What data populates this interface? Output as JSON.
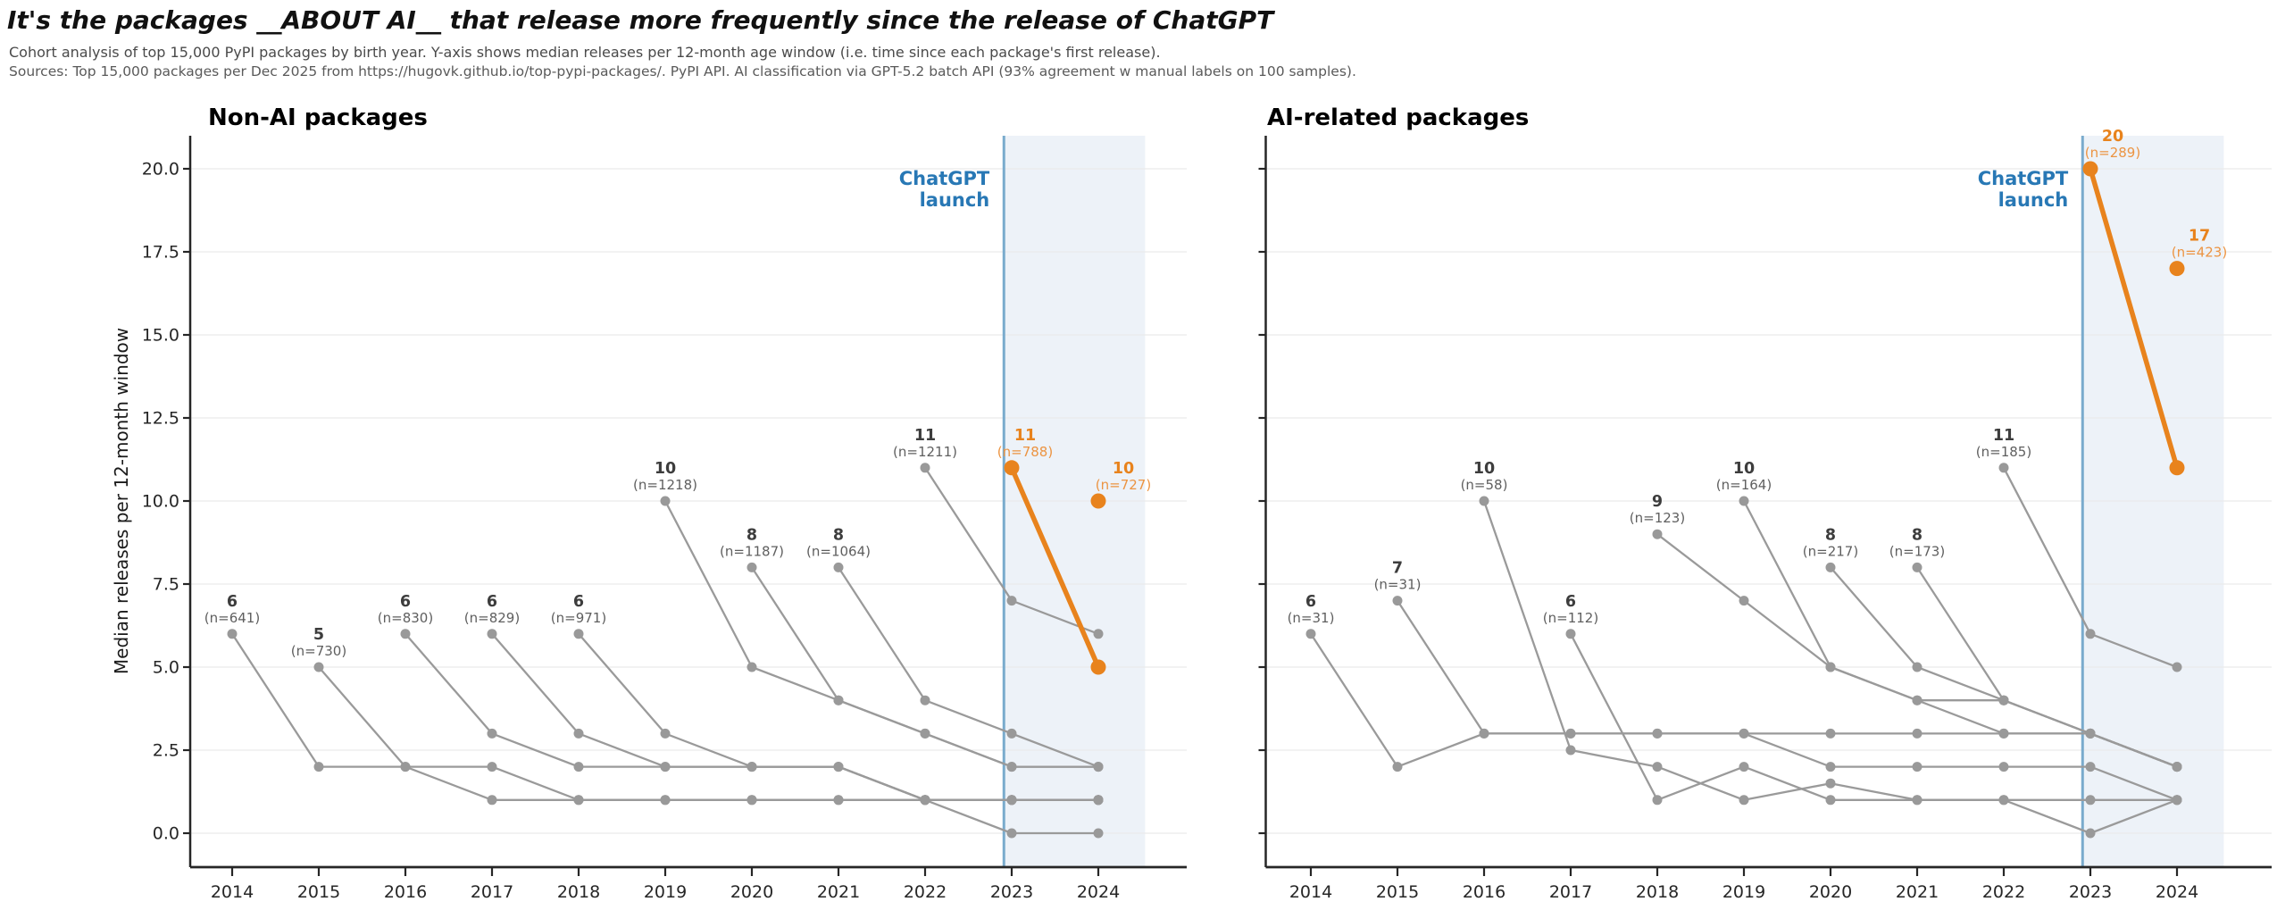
{
  "header": {
    "title": "It's the packages __ABOUT AI__ that release more frequently since the release of ChatGPT",
    "subtitle": "Cohort analysis of top 15,000 PyPI packages by birth year. Y-axis shows median releases per 12-month age window (i.e. time since each package's first release).",
    "sources": "Sources: Top 15,000 packages per Dec 2025 from https://hugovk.github.io/top-pypi-packages/. PyPI API. AI classification via GPT-5.2 batch API (93% agreement w manual labels on 100 samples)."
  },
  "colors": {
    "accent_orange": "#e8831d",
    "accent_orange_soft": "#ec9442",
    "line_gray": "#9a9a9a",
    "marker_gray": "#999999",
    "label_dark": "#3d3d3d",
    "label_mid": "#5f5f5f",
    "chatgpt_blue_text": "#2878b5",
    "chatgpt_blue_line": "#7aabcd",
    "shade_blue": "#edf2f8",
    "grid": "#eaeaea",
    "axis": "#262626",
    "tick_text": "#262626",
    "panel_title": "#000000"
  },
  "chart_data": [
    {
      "type": "line",
      "title": "Non-AI packages",
      "ylabel": "Median releases per 12-month window",
      "show_y_labels": true,
      "xlim": [
        2013.5,
        2025.0
      ],
      "ylim": [
        -1,
        21
      ],
      "grid": true,
      "legend": "none",
      "x_ticks": [
        {
          "v": 2014,
          "label": "2014"
        },
        {
          "v": 2015,
          "label": "2015"
        },
        {
          "v": 2016,
          "label": "2016"
        },
        {
          "v": 2017,
          "label": "2017"
        },
        {
          "v": 2018,
          "label": "2018"
        },
        {
          "v": 2019,
          "label": "2019"
        },
        {
          "v": 2020,
          "label": "2020"
        },
        {
          "v": 2021,
          "label": "2021"
        },
        {
          "v": 2022,
          "label": "2022"
        },
        {
          "v": 2023,
          "label": "2023"
        },
        {
          "v": 2024,
          "label": "2024"
        }
      ],
      "y_ticks": [
        {
          "v": 0,
          "label": "0.0"
        },
        {
          "v": 2.5,
          "label": "2.5"
        },
        {
          "v": 5,
          "label": "5.0"
        },
        {
          "v": 7.5,
          "label": "7.5"
        },
        {
          "v": 10,
          "label": "10.0"
        },
        {
          "v": 12.5,
          "label": "12.5"
        },
        {
          "v": 15,
          "label": "15.0"
        },
        {
          "v": 17.5,
          "label": "17.5"
        },
        {
          "v": 20,
          "label": "20.0"
        }
      ],
      "chatgpt_line": {
        "x": 2022.91,
        "label_line1": "ChatGPT",
        "label_line2": "launch"
      },
      "shade": {
        "x0": 2022.91,
        "x1": 2024.54
      },
      "series": [
        {
          "start_year": 2014,
          "values": [
            6,
            2,
            2,
            1,
            1,
            1,
            1,
            1,
            1,
            0,
            0
          ],
          "value_label": "6",
          "n_label": "(n=641)",
          "highlight": false,
          "label_dx": 0
        },
        {
          "start_year": 2015,
          "values": [
            5,
            2,
            2,
            1,
            1,
            1,
            1,
            1,
            1,
            1
          ],
          "value_label": "5",
          "n_label": "(n=730)",
          "highlight": false,
          "label_dx": 0
        },
        {
          "start_year": 2016,
          "values": [
            6,
            3,
            2,
            2,
            2,
            2,
            1,
            1,
            1
          ],
          "value_label": "6",
          "n_label": "(n=830)",
          "highlight": false,
          "label_dx": 0
        },
        {
          "start_year": 2017,
          "values": [
            6,
            3,
            2,
            2,
            2,
            1,
            1,
            1
          ],
          "value_label": "6",
          "n_label": "(n=829)",
          "highlight": false,
          "label_dx": 0
        },
        {
          "start_year": 2018,
          "values": [
            6,
            3,
            2,
            2,
            1,
            1,
            1
          ],
          "value_label": "6",
          "n_label": "(n=971)",
          "highlight": false,
          "label_dx": 0
        },
        {
          "start_year": 2019,
          "values": [
            10,
            5,
            4,
            3,
            2,
            2
          ],
          "value_label": "10",
          "n_label": "(n=1218)",
          "highlight": false,
          "label_dx": 0
        },
        {
          "start_year": 2020,
          "values": [
            8,
            4,
            3,
            2,
            2
          ],
          "value_label": "8",
          "n_label": "(n=1187)",
          "highlight": false,
          "label_dx": 0
        },
        {
          "start_year": 2021,
          "values": [
            8,
            4,
            3,
            2
          ],
          "value_label": "8",
          "n_label": "(n=1064)",
          "highlight": false,
          "label_dx": 0
        },
        {
          "start_year": 2022,
          "values": [
            11,
            7,
            6
          ],
          "value_label": "11",
          "n_label": "(n=1211)",
          "highlight": false,
          "label_dx": 0
        },
        {
          "start_year": 2023,
          "values": [
            11,
            5
          ],
          "value_label": "11",
          "n_label": "(n=788)",
          "highlight": true,
          "label_dx": 15
        },
        {
          "start_year": 2024,
          "values": [
            10
          ],
          "value_label": "10",
          "n_label": "(n=727)",
          "highlight": true,
          "label_dx": 28
        }
      ]
    },
    {
      "type": "line",
      "title": "AI-related packages",
      "ylabel": "",
      "show_y_labels": false,
      "xlim": [
        2013.5,
        2025.1
      ],
      "ylim": [
        -1,
        21
      ],
      "grid": true,
      "legend": "none",
      "x_ticks": [
        {
          "v": 2014,
          "label": "2014"
        },
        {
          "v": 2015,
          "label": "2015"
        },
        {
          "v": 2016,
          "label": "2016"
        },
        {
          "v": 2017,
          "label": "2017"
        },
        {
          "v": 2018,
          "label": "2018"
        },
        {
          "v": 2019,
          "label": "2019"
        },
        {
          "v": 2020,
          "label": "2020"
        },
        {
          "v": 2021,
          "label": "2021"
        },
        {
          "v": 2022,
          "label": "2022"
        },
        {
          "v": 2023,
          "label": "2023"
        },
        {
          "v": 2024,
          "label": "2024"
        }
      ],
      "y_ticks": [
        {
          "v": 0,
          "label": "0.0"
        },
        {
          "v": 2.5,
          "label": "2.5"
        },
        {
          "v": 5,
          "label": "5.0"
        },
        {
          "v": 7.5,
          "label": "7.5"
        },
        {
          "v": 10,
          "label": "10.0"
        },
        {
          "v": 12.5,
          "label": "12.5"
        },
        {
          "v": 15,
          "label": "15.0"
        },
        {
          "v": 17.5,
          "label": "17.5"
        },
        {
          "v": 20,
          "label": "20.0"
        }
      ],
      "chatgpt_line": {
        "x": 2022.91,
        "label_line1": "ChatGPT",
        "label_line2": "launch"
      },
      "shade": {
        "x0": 2022.91,
        "x1": 2024.54
      },
      "series": [
        {
          "start_year": 2014,
          "values": [
            6,
            2,
            3,
            3,
            3,
            3,
            2,
            2,
            2,
            2,
            1
          ],
          "value_label": "6",
          "n_label": "(n=31)",
          "highlight": false,
          "label_dx": 0
        },
        {
          "start_year": 2015,
          "values": [
            7,
            3,
            3,
            3,
            3,
            3,
            3,
            3,
            3,
            2
          ],
          "value_label": "7",
          "n_label": "(n=31)",
          "highlight": false,
          "label_dx": 0
        },
        {
          "start_year": 2016,
          "values": [
            10,
            2.5,
            2,
            1,
            1.5,
            1,
            1,
            0,
            1
          ],
          "value_label": "10",
          "n_label": "(n=58)",
          "highlight": false,
          "label_dx": 0
        },
        {
          "start_year": 2017,
          "values": [
            6,
            1,
            2,
            1,
            1,
            1,
            1,
            1
          ],
          "value_label": "6",
          "n_label": "(n=112)",
          "highlight": false,
          "label_dx": 0
        },
        {
          "start_year": 2018,
          "values": [
            9,
            7,
            5,
            4,
            4,
            3,
            2
          ],
          "value_label": "9",
          "n_label": "(n=123)",
          "highlight": false,
          "label_dx": 0
        },
        {
          "start_year": 2019,
          "values": [
            10,
            5,
            4,
            3,
            3,
            2
          ],
          "value_label": "10",
          "n_label": "(n=164)",
          "highlight": false,
          "label_dx": 0
        },
        {
          "start_year": 2020,
          "values": [
            8,
            5,
            4,
            3,
            2
          ],
          "value_label": "8",
          "n_label": "(n=217)",
          "highlight": false,
          "label_dx": 0
        },
        {
          "start_year": 2021,
          "values": [
            8,
            4,
            3,
            2
          ],
          "value_label": "8",
          "n_label": "(n=173)",
          "highlight": false,
          "label_dx": 0
        },
        {
          "start_year": 2022,
          "values": [
            11,
            6,
            5
          ],
          "value_label": "11",
          "n_label": "(n=185)",
          "highlight": false,
          "label_dx": 0
        },
        {
          "start_year": 2023,
          "values": [
            20,
            11
          ],
          "value_label": "20",
          "n_label": "(n=289)",
          "highlight": true,
          "label_dx": 25
        },
        {
          "start_year": 2024,
          "values": [
            17
          ],
          "value_label": "17",
          "n_label": "(n=423)",
          "highlight": true,
          "label_dx": 25
        }
      ]
    }
  ]
}
